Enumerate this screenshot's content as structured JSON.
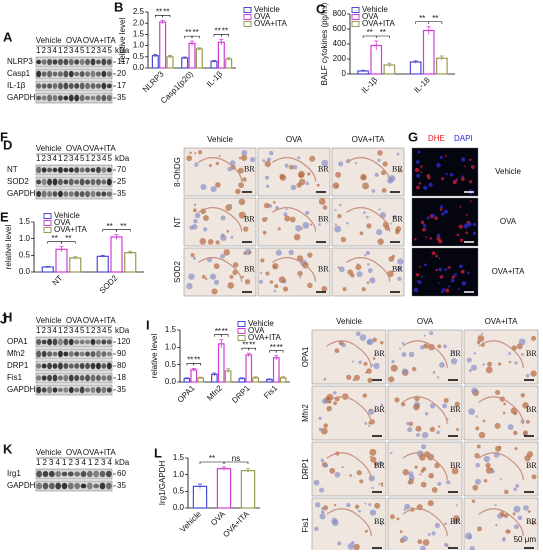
{
  "figure": {
    "blots": [
      {
        "label": "A",
        "groups": [
          "Vehicle",
          "OVA",
          "OVA+ITA"
        ],
        "lanes": "1 2 3 4 1 2 3 4 5 1 2 3 4 5",
        "unit": "kDa",
        "rows": [
          {
            "name": "NLRP3",
            "mw": 117
          },
          {
            "name": "Casp1",
            "mw": 20
          },
          {
            "name": "IL-1β",
            "mw": 17
          },
          {
            "name": "GAPDH",
            "mw": 35
          }
        ]
      },
      {
        "label": "D",
        "groups": [
          "Vehicle",
          "OVA",
          "OVA+ITA"
        ],
        "lanes": "1 2 3 4 1 2 3 4 5 1 2 3 4 5",
        "unit": "kDa",
        "rows": [
          {
            "name": "NT",
            "mw": 70
          },
          {
            "name": "SOD2",
            "mw": 25
          },
          {
            "name": "GAPDH",
            "mw": 35
          }
        ]
      },
      {
        "label": "H",
        "groups": [
          "Vehicle",
          "OVA",
          "OVA+ITA"
        ],
        "lanes": "1 2 3 4 1 2 3 4 5 1 2 3 4 5",
        "unit": "kDa",
        "rows": [
          {
            "name": "OPA1",
            "mw": 120
          },
          {
            "name": "Mfn2",
            "mw": 90
          },
          {
            "name": "DRP1",
            "mw": 80
          },
          {
            "name": "Fis1",
            "mw": 18
          },
          {
            "name": "GAPDH",
            "mw": 35
          }
        ]
      },
      {
        "label": "K",
        "groups": [
          "Vehicle",
          "OVA",
          "OVA+ITA"
        ],
        "lanes": "1 2 3 4 1 2 3 4 1 2 3 4",
        "unit": "kDa",
        "rows": [
          {
            "name": "Irg1",
            "mw": 60
          },
          {
            "name": "GAPDH",
            "mw": 35
          }
        ]
      }
    ],
    "images": [
      {
        "label": "F",
        "columns": [
          "Vehicle",
          "OVA",
          "OVA+ITA"
        ],
        "rows": [
          "8-OhDG",
          "NT",
          "SOD2"
        ],
        "cell_label": "BR"
      },
      {
        "label": "G",
        "header": [
          "DHE",
          "DAPI"
        ],
        "rows": [
          "Vehicle",
          "OVA",
          "OVA+ITA"
        ]
      },
      {
        "label": "J",
        "columns": [
          "Vehicle",
          "OVA",
          "OVA+ITA"
        ],
        "rows": [
          "OPA1",
          "Mfn2",
          "DRP1",
          "Fis1"
        ],
        "cell_label": "BR",
        "scale_label": "50 μm"
      }
    ]
  },
  "chart_data": [
    {
      "label": "B",
      "type": "bar",
      "ylabel": "relative level",
      "categories": [
        "NLRP3",
        "Casp1(p20)",
        "IL-1β"
      ],
      "series": [
        {
          "name": "Vehicle",
          "color": "#4b4bd8",
          "values": [
            0.55,
            0.45,
            0.3
          ],
          "errors": [
            0.06,
            0.04,
            0.04
          ]
        },
        {
          "name": "OVA",
          "color": "#d23cd2",
          "values": [
            2.05,
            1.1,
            1.15
          ],
          "errors": [
            0.08,
            0.1,
            0.12
          ]
        },
        {
          "name": "OVA+ITA",
          "color": "#9a9a52",
          "values": [
            0.5,
            0.85,
            0.4
          ],
          "errors": [
            0.06,
            0.05,
            0.06
          ]
        }
      ],
      "ylim": [
        0,
        2.5
      ],
      "yticks": [
        {
          "value": 0,
          "label": "0.0"
        },
        {
          "value": 0.5,
          "label": "0.5"
        },
        {
          "value": 1,
          "label": "1.0"
        },
        {
          "value": 1.5,
          "label": "1.5"
        },
        {
          "value": 2,
          "label": "2.0"
        },
        {
          "value": 2.5,
          "label": "2.5"
        }
      ],
      "significance": [
        [
          "**",
          "**"
        ],
        [
          "**",
          "**"
        ],
        [
          "**",
          "**"
        ]
      ]
    },
    {
      "label": "C",
      "type": "bar",
      "ylabel": "BALF cytokines (pg/ml)",
      "categories": [
        "IL-1β",
        "IL-18"
      ],
      "series": [
        {
          "name": "Vehicle",
          "color": "#4b4bd8",
          "values": [
            40,
            160
          ],
          "errors": [
            10,
            15
          ]
        },
        {
          "name": "OVA",
          "color": "#d23cd2",
          "values": [
            380,
            580
          ],
          "errors": [
            60,
            50
          ]
        },
        {
          "name": "OVA+ITA",
          "color": "#9a9a52",
          "values": [
            120,
            210
          ],
          "errors": [
            25,
            30
          ]
        }
      ],
      "ylim": [
        0,
        800
      ],
      "yticks": [
        0,
        200,
        400,
        600,
        800
      ],
      "significance": [
        [
          "**",
          "**"
        ],
        [
          "**",
          "**"
        ]
      ]
    },
    {
      "label": "E",
      "type": "bar",
      "ylabel": "relative level",
      "categories": [
        "NT",
        "SOD2"
      ],
      "series": [
        {
          "name": "Vehicle",
          "color": "#4b4bd8",
          "values": [
            0.15,
            0.47
          ],
          "errors": [
            0.02,
            0.03
          ]
        },
        {
          "name": "OVA",
          "color": "#d23cd2",
          "values": [
            0.68,
            1.05
          ],
          "errors": [
            0.08,
            0.07
          ]
        },
        {
          "name": "OVA+ITA",
          "color": "#9a9a52",
          "values": [
            0.42,
            0.58
          ],
          "errors": [
            0.04,
            0.04
          ]
        }
      ],
      "ylim": [
        0,
        1.5
      ],
      "yticks": [
        {
          "value": 0,
          "label": "0.0"
        },
        {
          "value": 0.5,
          "label": "0.5"
        },
        {
          "value": 1,
          "label": "1.0"
        },
        {
          "value": 1.5,
          "label": "1.5"
        }
      ],
      "significance": [
        [
          "**",
          "**"
        ],
        [
          "**",
          "**"
        ]
      ]
    },
    {
      "label": "I",
      "type": "bar",
      "ylabel": "relative level",
      "categories": [
        "OPA1",
        "Mfn2",
        "DRP1",
        "Fis1"
      ],
      "series": [
        {
          "name": "Vehicle",
          "color": "#4b4bd8",
          "values": [
            0.1,
            0.22,
            0.1,
            0.07
          ],
          "errors": [
            0.02,
            0.04,
            0.02,
            0.02
          ]
        },
        {
          "name": "OVA",
          "color": "#d23cd2",
          "values": [
            0.35,
            1.1,
            0.78,
            0.7
          ],
          "errors": [
            0.04,
            0.12,
            0.05,
            0.06
          ]
        },
        {
          "name": "OVA+ITA",
          "color": "#9a9a52",
          "values": [
            0.12,
            0.32,
            0.12,
            0.12
          ],
          "errors": [
            0.02,
            0.06,
            0.03,
            0.03
          ]
        }
      ],
      "ylim": [
        0,
        1.5
      ],
      "yticks": [
        {
          "value": 0,
          "label": "0.0"
        },
        {
          "value": 0.5,
          "label": "0.5"
        },
        {
          "value": 1,
          "label": "1.0"
        },
        {
          "value": 1.5,
          "label": "1.5"
        }
      ],
      "significance": [
        [
          "**",
          "**"
        ],
        [
          "**",
          "**"
        ],
        [
          "**",
          "**"
        ],
        [
          "**",
          "**"
        ]
      ]
    },
    {
      "label": "L",
      "type": "bar",
      "ylabel": "Irg1/GAPDH",
      "categories": [
        "Vehicle",
        "OVA",
        "OVA+ITA"
      ],
      "values": [
        0.65,
        1.18,
        1.12
      ],
      "errors": [
        0.07,
        0.05,
        0.06
      ],
      "colors": [
        "#4b4bd8",
        "#d23cd2",
        "#9a9a52"
      ],
      "ylim": [
        0,
        1.5
      ],
      "yticks": [
        {
          "value": 0,
          "label": "0.0"
        },
        {
          "value": 0.5,
          "label": "0.5"
        },
        {
          "value": 1,
          "label": "1.0"
        },
        {
          "value": 1.5,
          "label": "1.5"
        }
      ],
      "significance": [
        [
          "**",
          "ns"
        ]
      ]
    }
  ]
}
